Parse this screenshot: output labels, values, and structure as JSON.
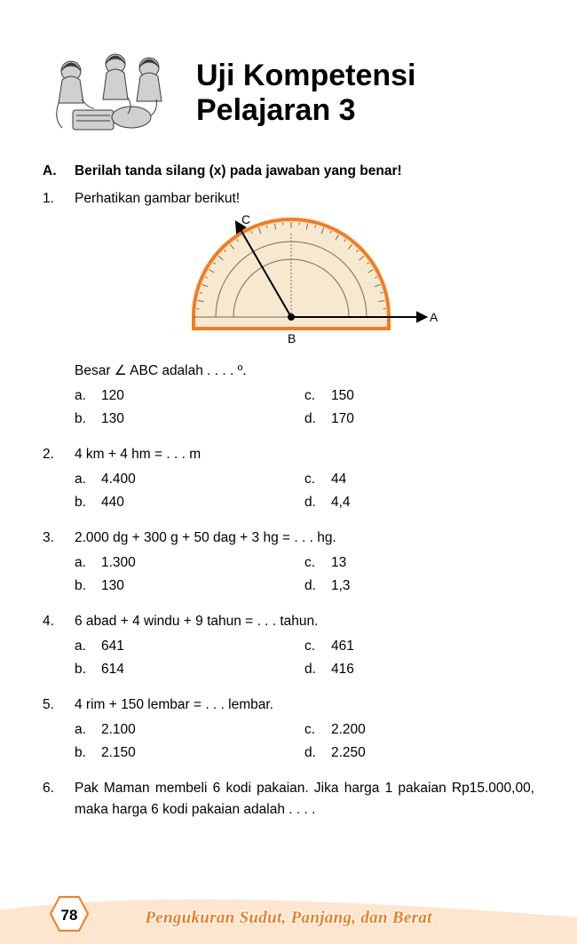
{
  "title_line1": "Uji Kompetensi",
  "title_line2": "Pelajaran 3",
  "section": {
    "letter": "A.",
    "text": "Berilah tanda silang (x) pada jawaban yang benar!"
  },
  "questions": [
    {
      "num": "1.",
      "stem": "Perhatikan gambar berikut!",
      "has_figure": true,
      "followup": "Besar ∠ ABC adalah . . . . º.",
      "choices": {
        "a": "120",
        "b": "130",
        "c": "150",
        "d": "170"
      }
    },
    {
      "num": "2.",
      "stem": "4 km + 4 hm = . . . m",
      "choices": {
        "a": "4.400",
        "b": "440",
        "c": "44",
        "d": "4,4"
      }
    },
    {
      "num": "3.",
      "stem": "2.000 dg + 300 g + 50 dag + 3 hg = . . . hg.",
      "choices": {
        "a": "1.300",
        "b": "130",
        "c": "13",
        "d": "1,3"
      }
    },
    {
      "num": "4.",
      "stem": "6 abad + 4 windu + 9 tahun = . . . tahun.",
      "choices": {
        "a": "641",
        "b": "614",
        "c": "461",
        "d": "416"
      }
    },
    {
      "num": "5.",
      "stem": "4 rim + 150 lembar = . . . lembar.",
      "choices": {
        "a": "2.100",
        "b": "2.150",
        "c": "2.200",
        "d": "2.250"
      }
    },
    {
      "num": "6.",
      "stem": "Pak Maman membeli 6 kodi pakaian. Jika harga 1 pakaian Rp15.000,00, maka harga 6 kodi pakaian adalah . . . .",
      "justify": true
    }
  ],
  "protractor": {
    "label_A": "A",
    "label_B": "B",
    "label_C": "C",
    "outline_color": "#f57c1f",
    "fill_color": "#f7e9cf",
    "tick_color": "#7a6a4a",
    "ray_color": "#000000"
  },
  "footer": {
    "page_number": "78",
    "chapter_title": "Pengukuran Sudut, Panjang, dan Berat",
    "curve_fill": "#fde6cf",
    "hex_fill": "#ffffff",
    "hex_stroke": "#f57c1f",
    "title_color": "#f57c1f"
  },
  "illustration": {
    "tone_dark": "#3a3a3a",
    "tone_mid": "#8a8a8a",
    "tone_light": "#d0d0d0"
  }
}
